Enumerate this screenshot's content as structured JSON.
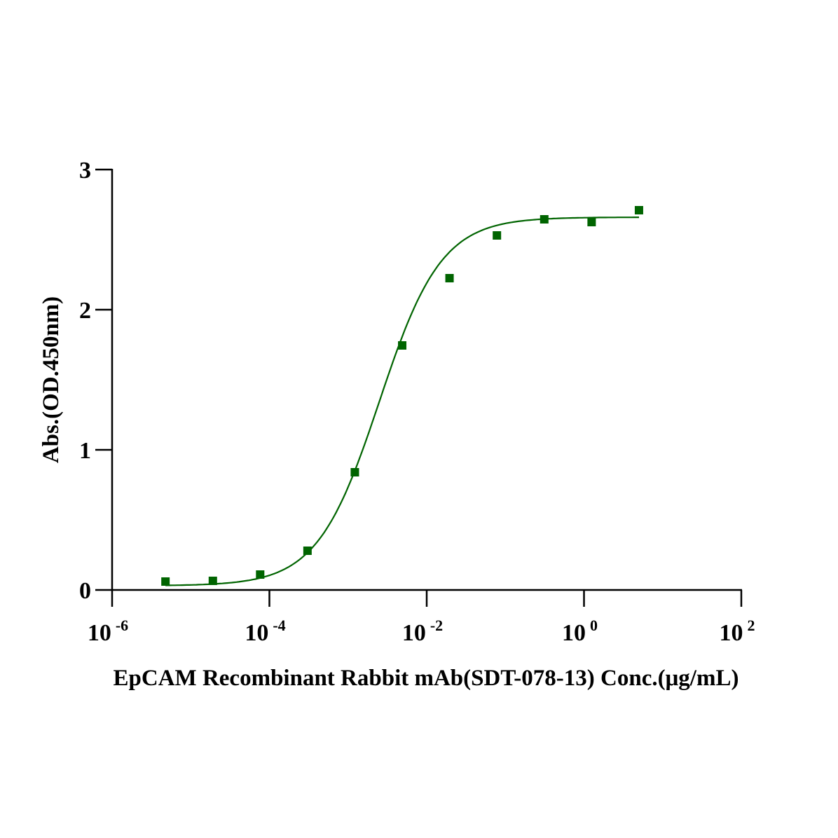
{
  "chart_data": {
    "type": "scatter",
    "title": "",
    "xlabel": "EpCAM Recombinant Rabbit mAb(SDT-078-13) Conc.(μg/mL)",
    "ylabel": "Abs.(OD.450nm)",
    "xscale": "log",
    "xlim": [
      1e-06,
      100
    ],
    "ylim": [
      0,
      3
    ],
    "x_ticks": [
      {
        "base": "10",
        "exp": "-6",
        "value": 1e-06
      },
      {
        "base": "10",
        "exp": "-4",
        "value": 0.0001
      },
      {
        "base": "10",
        "exp": "-2",
        "value": 0.01
      },
      {
        "base": "10",
        "exp": "0",
        "value": 1
      },
      {
        "base": "10",
        "exp": "2",
        "value": 100
      }
    ],
    "y_ticks": [
      "0",
      "1",
      "2",
      "3"
    ],
    "grid": false,
    "series": [
      {
        "name": "EpCAM",
        "color": "#006400",
        "marker": "square",
        "x": [
          4.77e-06,
          1.91e-05,
          7.63e-05,
          0.000305,
          0.00122,
          0.00488,
          0.0195,
          0.0781,
          0.3125,
          1.25,
          5
        ],
        "y": [
          0.06,
          0.065,
          0.11,
          0.28,
          0.84,
          1.745,
          2.225,
          2.53,
          2.645,
          2.625,
          2.71
        ]
      }
    ],
    "fit": {
      "model": "4PL",
      "bottom": 0.03,
      "top": 2.66,
      "ec50": 0.0025,
      "hill": 1.1,
      "color": "#006400"
    }
  }
}
